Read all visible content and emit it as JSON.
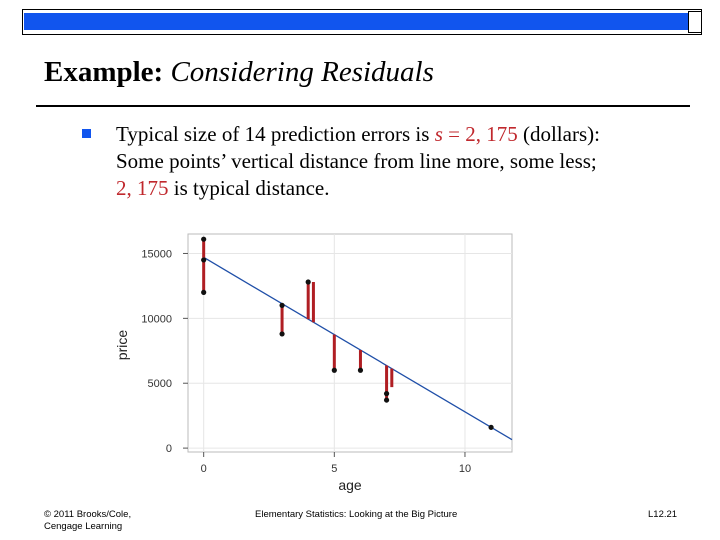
{
  "header": {
    "bar_color": "#1155ee"
  },
  "slide": {
    "title_bold": "Example:",
    "title_italic": " Considering Residuals",
    "bullet": {
      "line1_a": "Typical size of 14 prediction errors is ",
      "s_var": "s",
      "line1_b": " = ",
      "s_value": "2, 175",
      "line1_c": " (dollars):",
      "line2": "Some points’ vertical distance from line more, some less;",
      "line3_value": "2, 175",
      "line3_rest": " is typical distance."
    }
  },
  "chart_data": {
    "type": "scatter",
    "xlabel": "age",
    "ylabel": "price",
    "xlim": [
      -0.6,
      11.8
    ],
    "ylim": [
      -300,
      16500
    ],
    "xticks": [
      0,
      5,
      10
    ],
    "yticks": [
      0,
      5000,
      10000,
      15000
    ],
    "regression_line": {
      "x": [
        0,
        11.8
      ],
      "y": [
        14700,
        650
      ]
    },
    "points": [
      {
        "x": 0,
        "y": 16100
      },
      {
        "x": 0,
        "y": 14500
      },
      {
        "x": 0,
        "y": 12000
      },
      {
        "x": 3,
        "y": 11000
      },
      {
        "x": 3,
        "y": 8800
      },
      {
        "x": 4,
        "y": 12800
      },
      {
        "x": 5,
        "y": 6000
      },
      {
        "x": 6,
        "y": 6000
      },
      {
        "x": 7,
        "y": 4200
      },
      {
        "x": 7,
        "y": 3700
      },
      {
        "x": 11,
        "y": 1600
      }
    ],
    "residuals": [
      {
        "x": 0,
        "y_obs": 16100
      },
      {
        "x": 0,
        "y_obs": 12000
      },
      {
        "x": 3,
        "y_obs": 11000
      },
      {
        "x": 3,
        "y_obs": 8800
      },
      {
        "x": 4,
        "y_obs": 12800
      },
      {
        "x": 4.2,
        "y_obs": 12800
      },
      {
        "x": 5,
        "y_obs": 6000
      },
      {
        "x": 6,
        "y_obs": 6000
      },
      {
        "x": 7,
        "y_obs": 3700
      },
      {
        "x": 7.2,
        "y_obs": 4700
      },
      {
        "x": 11,
        "y_obs": 1600
      }
    ],
    "colors": {
      "line": "#1f4fa8",
      "residual": "#b01e23",
      "point": "#111111",
      "grid": "#e6e6e6"
    }
  },
  "footer": {
    "left_line1": "© 2011 Brooks/Cole,",
    "left_line2": "Cengage Learning",
    "center": "Elementary Statistics: Looking at the Big Picture",
    "right": "L12.21"
  }
}
